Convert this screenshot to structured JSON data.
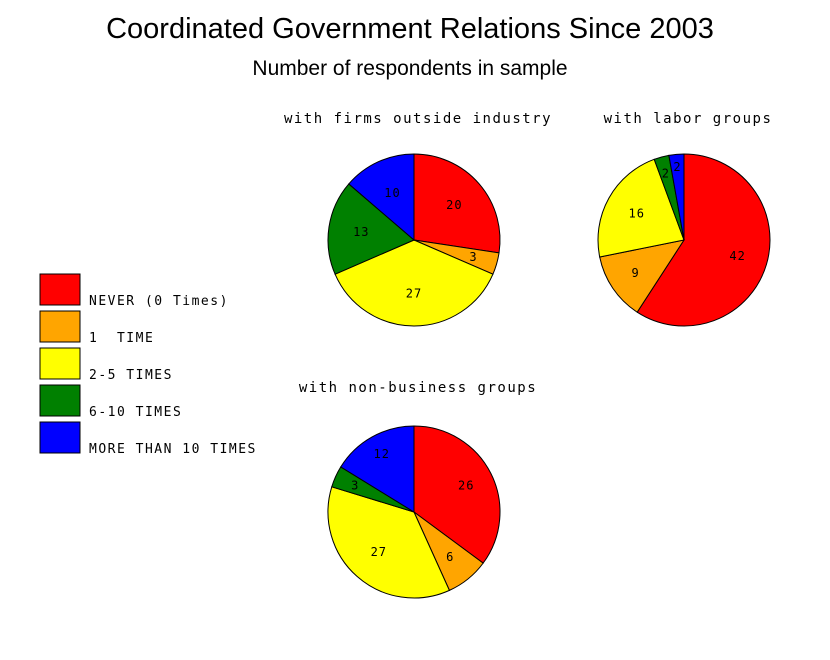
{
  "chart_data": {
    "type": "pie",
    "title": "Coordinated Government Relations Since 2003",
    "subtitle": "Number of respondents in sample",
    "categories": [
      "NEVER (0 Times)",
      "1  TIME",
      "2-5 TIMES",
      "6-10 TIMES",
      "MORE THAN 10 TIMES"
    ],
    "colors": [
      "#ff0000",
      "#ffa500",
      "#ffff00",
      "#008000",
      "#0000ff"
    ],
    "legend_position": "left",
    "series": [
      {
        "name": "with firms outside industry",
        "values": [
          20,
          3,
          27,
          13,
          10
        ]
      },
      {
        "name": "with labor groups",
        "values": [
          42,
          9,
          16,
          2,
          2
        ]
      },
      {
        "name": "with non-business groups",
        "values": [
          26,
          6,
          27,
          3,
          12
        ]
      }
    ]
  }
}
